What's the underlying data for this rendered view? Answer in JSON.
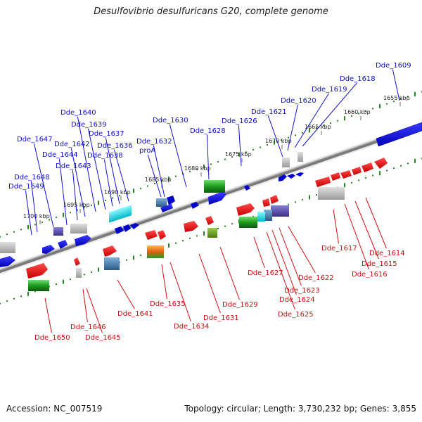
{
  "title": "Desulfovibrio desulfuricans G20, complete genome",
  "footer": {
    "accession": "Accession: NC_007519",
    "summary": "Topology: circular; Length: 3,730,232 bp; Genes: 3,855"
  },
  "scale_ticks": [
    "1655 kbp",
    "1660 kbp",
    "1665 kbp",
    "1670 kbp",
    "1675 kbp",
    "1680 kbp",
    "1685 kbp",
    "1690 kbp",
    "1695 kbp",
    "1700 kbp"
  ],
  "upper_gene_labels": [
    "Dde_1609",
    "Dde_1618",
    "Dde_1619",
    "Dde_1620",
    "Dde_1621",
    "Dde_1626",
    "Dde_1628",
    "Dde_1630",
    "Dde_1632",
    "proA",
    "Dde_1636",
    "Dde_1637",
    "Dde_1638",
    "Dde_1639",
    "Dde_1640",
    "Dde_1642",
    "Dde_1643",
    "Dde_1644",
    "Dde_1647",
    "Dde_1648",
    "Dde_1649"
  ],
  "lower_gene_labels": [
    "Dde_1614",
    "Dde_1615",
    "Dde_1616",
    "Dde_1617",
    "Dde_1622",
    "Dde_1623",
    "Dde_1624",
    "Dde_1625",
    "Dde_1627",
    "Dde_1629",
    "Dde_1631",
    "Dde_1634",
    "Dde_1635",
    "Dde_1641",
    "Dde_1645",
    "Dde_1646",
    "Dde_1650"
  ],
  "colors": {
    "forward_strand": "#0000dd",
    "reverse_strand": "#dd0000",
    "backbone": "#7a7a7a",
    "tick": "#228822"
  }
}
